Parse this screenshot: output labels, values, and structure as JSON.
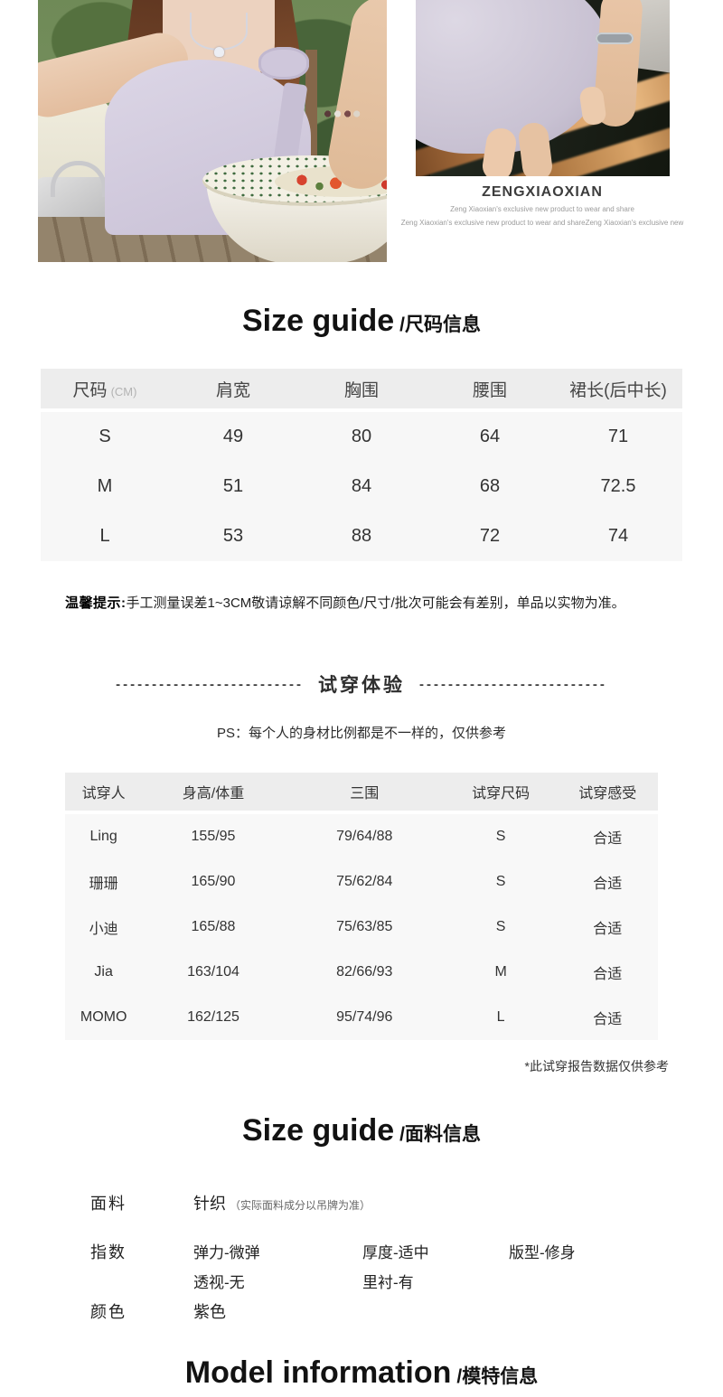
{
  "brand": {
    "name": "ZENGXIAOXIAN",
    "tagline1": "Zeng Xiaoxian's exclusive new product to wear and share",
    "tagline2": "Zeng Xiaoxian's exclusive new product to wear and shareZeng Xiaoxian's exclusive new"
  },
  "size_guide": {
    "title_en": "Size guide",
    "title_cn": "/尺码信息",
    "table": {
      "headers": [
        "尺码",
        "肩宽",
        "胸围",
        "腰围",
        "裙长(后中长)"
      ],
      "col1_unit": "(CM)",
      "rows": [
        [
          "S",
          "49",
          "80",
          "64",
          "71"
        ],
        [
          "M",
          "51",
          "84",
          "68",
          "72.5"
        ],
        [
          "L",
          "53",
          "88",
          "72",
          "74"
        ]
      ]
    },
    "notice_label": "温馨提示:",
    "notice_text": "手工测量误差1~3CM敬请谅解不同颜色/尺寸/批次可能会有差别，单品以实物为准。"
  },
  "fitting": {
    "divider": {
      "dashes_left": "--------------------------",
      "title": "试穿体验",
      "dashes_right": "--------------------------"
    },
    "ps_note": "PS：每个人的身材比例都是不一样的，仅供参考",
    "table": {
      "headers": [
        "试穿人",
        "身高/体重",
        "三围",
        "试穿尺码",
        "试穿感受"
      ],
      "rows": [
        [
          "Ling",
          "155/95",
          "79/64/88",
          "S",
          "合适"
        ],
        [
          "珊珊",
          "165/90",
          "75/62/84",
          "S",
          "合适"
        ],
        [
          "小迪",
          "165/88",
          "75/63/85",
          "S",
          "合适"
        ],
        [
          "Jia",
          "163/104",
          "82/66/93",
          "M",
          "合适"
        ],
        [
          "MOMO",
          "162/125",
          "95/74/96",
          "L",
          "合适"
        ]
      ]
    },
    "footnote": "*此试穿报告数据仅供参考"
  },
  "fabric": {
    "title_en": "Size guide",
    "title_cn": "/面料信息",
    "material_label": "面料",
    "material_value": "针织",
    "material_note": "（实际面料成分以吊牌为准）",
    "index_label": "指数",
    "index_line1": [
      "弹力-微弹",
      "厚度-适中",
      "版型-修身"
    ],
    "index_line2": [
      "透视-无",
      "里衬-有"
    ],
    "color_label": "颜色",
    "color_value": "紫色"
  },
  "model_info": {
    "title_en": "Model information",
    "title_cn": "/模特信息"
  },
  "colors": {
    "accent_lavender": "#cfc7da",
    "table_header_bg": "#ededed",
    "table_body_bg": "#f7f7f7",
    "text_primary": "#333333",
    "highlight_orange": "#e8b277"
  }
}
